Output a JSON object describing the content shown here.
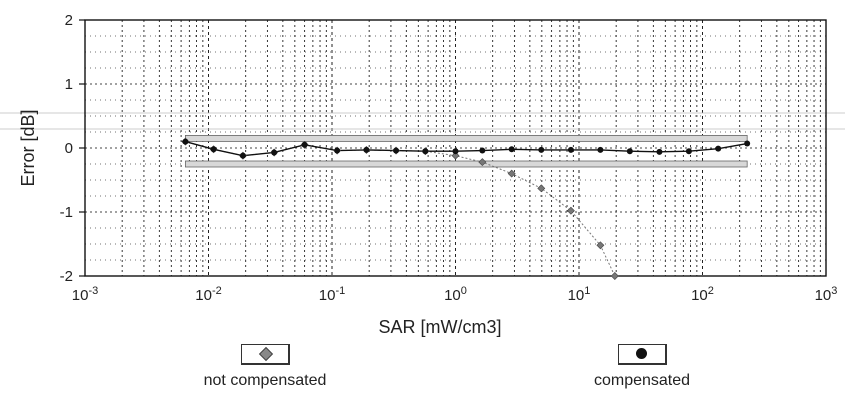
{
  "chart_data": {
    "type": "scatter",
    "title": "",
    "xlabel": "SAR [mW/cm3]",
    "ylabel": "Error [dB]",
    "xscale": "log",
    "xlim": [
      0.001,
      1000
    ],
    "ylim": [
      -2,
      2
    ],
    "grid": true,
    "x_ticks": [
      {
        "value": 0.001,
        "base": "10",
        "exp": "-3"
      },
      {
        "value": 0.01,
        "base": "10",
        "exp": "-2"
      },
      {
        "value": 0.1,
        "base": "10",
        "exp": "-1"
      },
      {
        "value": 1,
        "base": "10",
        "exp": "0"
      },
      {
        "value": 10,
        "base": "10",
        "exp": "1"
      },
      {
        "value": 100,
        "base": "10",
        "exp": "2"
      },
      {
        "value": 1000,
        "base": "10",
        "exp": "3"
      }
    ],
    "y_ticks": [
      "2",
      "1",
      "0",
      "-1",
      "-2"
    ],
    "tolerance_band": {
      "upper": 0.15,
      "lower": -0.25,
      "x_range": [
        0.0065,
        230
      ]
    },
    "series": [
      {
        "name": "not compensated",
        "marker": "diamond",
        "color": "#808080",
        "x": [
          0.0065,
          0.011,
          0.019,
          0.034,
          0.06,
          0.11,
          0.19,
          0.33,
          0.57,
          1.0,
          1.65,
          2.85,
          4.95,
          8.6,
          14.9,
          19.5
        ],
        "y": [
          0.1,
          -0.02,
          -0.12,
          -0.07,
          0.05,
          -0.04,
          -0.03,
          -0.04,
          -0.05,
          -0.12,
          -0.22,
          -0.4,
          -0.63,
          -0.98,
          -1.52,
          -2.0
        ]
      },
      {
        "name": "compensated",
        "marker": "circle",
        "color": "#111111",
        "x": [
          0.0065,
          0.011,
          0.019,
          0.034,
          0.06,
          0.11,
          0.19,
          0.33,
          0.57,
          1.0,
          1.65,
          2.85,
          4.95,
          8.6,
          14.9,
          25.8,
          44.8,
          77.6,
          134,
          230
        ],
        "y": [
          0.1,
          -0.02,
          -0.12,
          -0.07,
          0.05,
          -0.04,
          -0.03,
          -0.04,
          -0.05,
          -0.05,
          -0.04,
          -0.02,
          -0.03,
          -0.03,
          -0.03,
          -0.05,
          -0.06,
          -0.05,
          -0.01,
          0.07
        ]
      }
    ],
    "legend": {
      "placement": "bottom"
    }
  }
}
